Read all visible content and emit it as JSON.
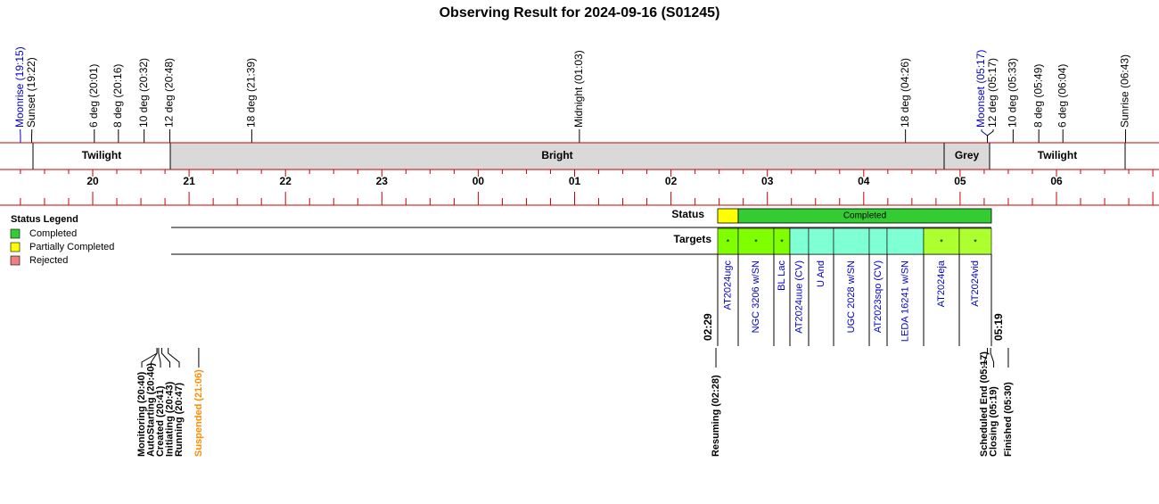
{
  "title": "Observing Result for 2024-09-16 (S01245)",
  "sky_events": [
    {
      "label": "Moonrise (19:15)",
      "color": "#0000cc"
    },
    {
      "label": "Sunset (19:22)",
      "color": "#000000"
    },
    {
      "label": "6 deg (20:01)",
      "color": "#000000"
    },
    {
      "label": "8 deg (20:16)",
      "color": "#000000"
    },
    {
      "label": "10 deg (20:32)",
      "color": "#000000"
    },
    {
      "label": "12 deg (20:48)",
      "color": "#000000"
    },
    {
      "label": "18 deg (21:39)",
      "color": "#000000"
    },
    {
      "label": "Midnight (01:03)",
      "color": "#000000"
    },
    {
      "label": "18 deg (04:26)",
      "color": "#000000"
    },
    {
      "label": "Moonset (05:17)",
      "color": "#0000cc"
    },
    {
      "label": "12 deg (05:17)",
      "color": "#000000"
    },
    {
      "label": "10 deg (05:33)",
      "color": "#000000"
    },
    {
      "label": "8 deg (05:49)",
      "color": "#000000"
    },
    {
      "label": "6 deg (06:04)",
      "color": "#000000"
    },
    {
      "label": "Sunrise (06:43)",
      "color": "#000000"
    }
  ],
  "bands": [
    {
      "label": "Twilight",
      "color": "#ffffff"
    },
    {
      "label": "Bright",
      "color": "#d9d9d9"
    },
    {
      "label": "Grey",
      "color": "#d9d9d9"
    },
    {
      "label": "Twilight",
      "color": "#ffffff"
    }
  ],
  "hours": [
    "20",
    "21",
    "22",
    "23",
    "00",
    "01",
    "02",
    "03",
    "04",
    "05",
    "06"
  ],
  "status_legend": {
    "title": "Status Legend",
    "items": [
      {
        "label": "Completed",
        "color": "#33cc33"
      },
      {
        "label": "Partially Completed",
        "color": "#ffff00"
      },
      {
        "label": "Rejected",
        "color": "#f08080"
      }
    ]
  },
  "status": {
    "label": "Status",
    "segments": [
      {
        "color": "#ffff00"
      },
      {
        "label": "Completed",
        "color": "#33cc33"
      }
    ]
  },
  "targets": {
    "label": "Targets",
    "items": [
      {
        "name": "AT2024ugc",
        "mark": "*",
        "color": "#80ff00"
      },
      {
        "name": "NGC 3206 w/SN",
        "mark": "*",
        "color": "#80ff00"
      },
      {
        "name": "BL Lac",
        "mark": "*",
        "color": "#80ff00"
      },
      {
        "name": "AT2024uue (CV)",
        "color": "#7fffd4"
      },
      {
        "name": "U And",
        "color": "#7fffd4"
      },
      {
        "name": "UGC 2028 w/SN",
        "color": "#7fffd4"
      },
      {
        "name": "AT2023sqo (CV)",
        "color": "#7fffd4"
      },
      {
        "name": "LEDA 16241 w/SN",
        "color": "#7fffd4"
      },
      {
        "name": "AT2024eja",
        "mark": "*",
        "color": "#adff2f"
      },
      {
        "name": "AT2024vid",
        "mark": "*",
        "color": "#adff2f"
      }
    ]
  },
  "window": {
    "start": "02:29",
    "end": "05:19"
  },
  "run_events": [
    {
      "label": "Monitoring (20:40)",
      "color": "#000000"
    },
    {
      "label": "AutoStarting (20:40)",
      "color": "#000000"
    },
    {
      "label": "Created (20:41)",
      "color": "#000000"
    },
    {
      "label": "Initiating (20:43)",
      "color": "#000000"
    },
    {
      "label": "Running (20:47)",
      "color": "#000000"
    },
    {
      "label": "Suspended (21:06)",
      "color": "#ff8c00"
    },
    {
      "label": "Resuming (02:28)",
      "color": "#000000"
    },
    {
      "label": "Scheduled End (05:17)",
      "color": "#000000"
    },
    {
      "label": "Closing (05:19)",
      "color": "#000000"
    },
    {
      "label": "Finished (05:30)",
      "color": "#000000"
    }
  ]
}
